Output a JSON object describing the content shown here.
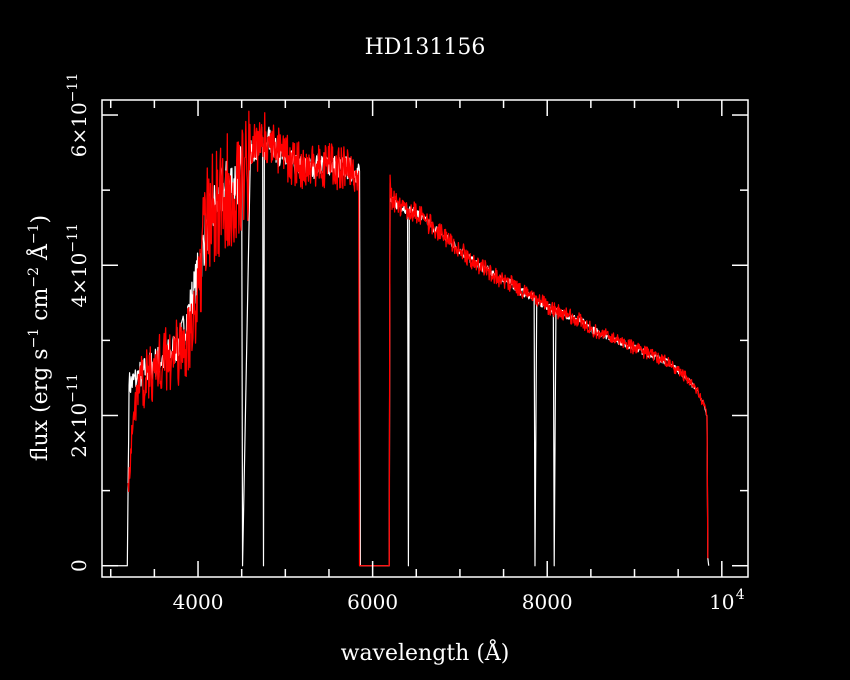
{
  "colors": {
    "background": "#000000",
    "axes": "#ffffff",
    "model": "#ffffff",
    "observed": "#ff0000"
  },
  "chart_data": {
    "type": "line",
    "title": "HD131156",
    "xlabel": "wavelength (Å)",
    "ylabel": {
      "base": "flux (erg s",
      "exp1": "−1",
      "mid": " cm",
      "exp2": "−2",
      "unit": " Å",
      "exp3": "−1",
      "close": ")"
    },
    "xlim": [
      2900,
      10300
    ],
    "ylim": [
      -1.5e-12,
      6.2e-11
    ],
    "x_ticks": [
      {
        "value": 4000,
        "label": "4000"
      },
      {
        "value": 6000,
        "label": "6000"
      },
      {
        "value": 8000,
        "label": "8000"
      },
      {
        "value": 10000,
        "label": "10",
        "exponent": "4"
      }
    ],
    "x_minor_step": 500,
    "y_ticks": [
      {
        "value": 0,
        "label": "0",
        "exponent": ""
      },
      {
        "value": 2e-11,
        "label": "2×10",
        "exponent": "−11"
      },
      {
        "value": 4e-11,
        "label": "4×10",
        "exponent": "−11"
      },
      {
        "value": 6e-11,
        "label": "6×10",
        "exponent": "−11"
      }
    ],
    "y_minor_step": 1e-11,
    "grid": false,
    "series": [
      {
        "key": "model",
        "color": "#ffffff",
        "x": [
          3000,
          3190,
          3200,
          3210,
          3300,
          3400,
          3500,
          3600,
          3700,
          3800,
          3900,
          3960,
          4000,
          4100,
          4200,
          4300,
          4400,
          4480,
          4500,
          4510,
          4600,
          4700,
          4740,
          4750,
          4760,
          4800,
          4900,
          5000,
          5100,
          5200,
          5300,
          5400,
          5500,
          5600,
          5700,
          5800,
          5850,
          5860,
          6000,
          6100,
          6190,
          6200,
          6210,
          6300,
          6400,
          6410,
          6420,
          6450,
          6500,
          6600,
          6700,
          6800,
          6900,
          7000,
          7100,
          7200,
          7300,
          7400,
          7500,
          7600,
          7700,
          7800,
          7850,
          7860,
          7880,
          7900,
          8000,
          8070,
          8080,
          8100,
          8110,
          8200,
          8300,
          8400,
          8500,
          8600,
          8700,
          8800,
          8900,
          9000,
          9100,
          9200,
          9300,
          9400,
          9500,
          9600,
          9700,
          9800,
          9830,
          9840,
          9850
        ],
        "y": [
          0,
          0,
          1.2e-11,
          2.4e-11,
          2.5e-11,
          2.6e-11,
          2.7e-11,
          2.75e-11,
          2.85e-11,
          3e-11,
          3.4e-11,
          3.7e-11,
          3.9e-11,
          4.5e-11,
          4.8e-11,
          5e-11,
          5.1e-11,
          5.2e-11,
          5.3e-11,
          0,
          5.5e-11,
          5.6e-11,
          5.7e-11,
          0,
          5.6e-11,
          5.7e-11,
          5.5e-11,
          5.4e-11,
          5.35e-11,
          5.3e-11,
          5.3e-11,
          5.35e-11,
          5.35e-11,
          5.3e-11,
          5.3e-11,
          5.25e-11,
          5.25e-11,
          0,
          0,
          0,
          0,
          5.1e-11,
          4.85e-11,
          4.8e-11,
          4.75e-11,
          0,
          4.75e-11,
          4.7e-11,
          4.7e-11,
          4.6e-11,
          4.5e-11,
          4.4e-11,
          4.3e-11,
          4.2e-11,
          4.1e-11,
          4e-11,
          3.95e-11,
          3.85e-11,
          3.8e-11,
          3.75e-11,
          3.65e-11,
          3.6e-11,
          3.6e-11,
          0,
          3.55e-11,
          3.5e-11,
          3.45e-11,
          3.4e-11,
          0,
          3.4e-11,
          3.38e-11,
          3.35e-11,
          3.3e-11,
          3.25e-11,
          3.15e-11,
          3.1e-11,
          3.05e-11,
          3e-11,
          2.95e-11,
          2.9e-11,
          2.85e-11,
          2.8e-11,
          2.75e-11,
          2.7e-11,
          2.6e-11,
          2.5e-11,
          2.35e-11,
          2.15e-11,
          2e-11,
          1e-12,
          0
        ]
      },
      {
        "key": "observed",
        "color": "#ff0000",
        "x": [
          3200,
          3300,
          3400,
          3500,
          3600,
          3700,
          3800,
          3900,
          3960,
          4000,
          4100,
          4200,
          4300,
          4400,
          4480,
          4500,
          4600,
          4700,
          4740,
          4800,
          4900,
          5000,
          5100,
          5200,
          5300,
          5400,
          5500,
          5600,
          5700,
          5800,
          5840,
          5850,
          6100,
          6190,
          6200,
          6210,
          6300,
          6400,
          6500,
          6600,
          6700,
          6800,
          6900,
          7000,
          7100,
          7200,
          7300,
          7400,
          7500,
          7600,
          7700,
          7800,
          7900,
          8000,
          8100,
          8200,
          8300,
          8400,
          8500,
          8600,
          8700,
          8800,
          8900,
          9000,
          9100,
          9200,
          9300,
          9400,
          9500,
          9600,
          9700,
          9800,
          9830,
          9840
        ],
        "y": [
          1.1e-11,
          2.4e-11,
          2.5e-11,
          2.6e-11,
          2.75e-11,
          2.8e-11,
          2.85e-11,
          3e-11,
          3.35e-11,
          3.7e-11,
          4.6e-11,
          4.8e-11,
          4.9e-11,
          5.1e-11,
          5.2e-11,
          5.3e-11,
          5.5e-11,
          5.6e-11,
          5.7e-11,
          5.7e-11,
          5.55e-11,
          5.45e-11,
          5.35e-11,
          5.3e-11,
          5.3e-11,
          5.35e-11,
          5.35e-11,
          5.3e-11,
          5.3e-11,
          5.25e-11,
          5.25e-11,
          0,
          0,
          0,
          5.2e-11,
          4.9e-11,
          4.8e-11,
          4.75e-11,
          4.7e-11,
          4.6e-11,
          4.5e-11,
          4.4e-11,
          4.3e-11,
          4.2e-11,
          4.1e-11,
          4e-11,
          3.95e-11,
          3.85e-11,
          3.8e-11,
          3.75e-11,
          3.65e-11,
          3.6e-11,
          3.55e-11,
          3.45e-11,
          3.4e-11,
          3.35e-11,
          3.3e-11,
          3.25e-11,
          3.15e-11,
          3.1e-11,
          3.05e-11,
          3e-11,
          2.95e-11,
          2.9e-11,
          2.85e-11,
          2.8e-11,
          2.75e-11,
          2.7e-11,
          2.6e-11,
          2.5e-11,
          2.35e-11,
          2.15e-11,
          2e-11,
          1e-12
        ]
      }
    ]
  }
}
